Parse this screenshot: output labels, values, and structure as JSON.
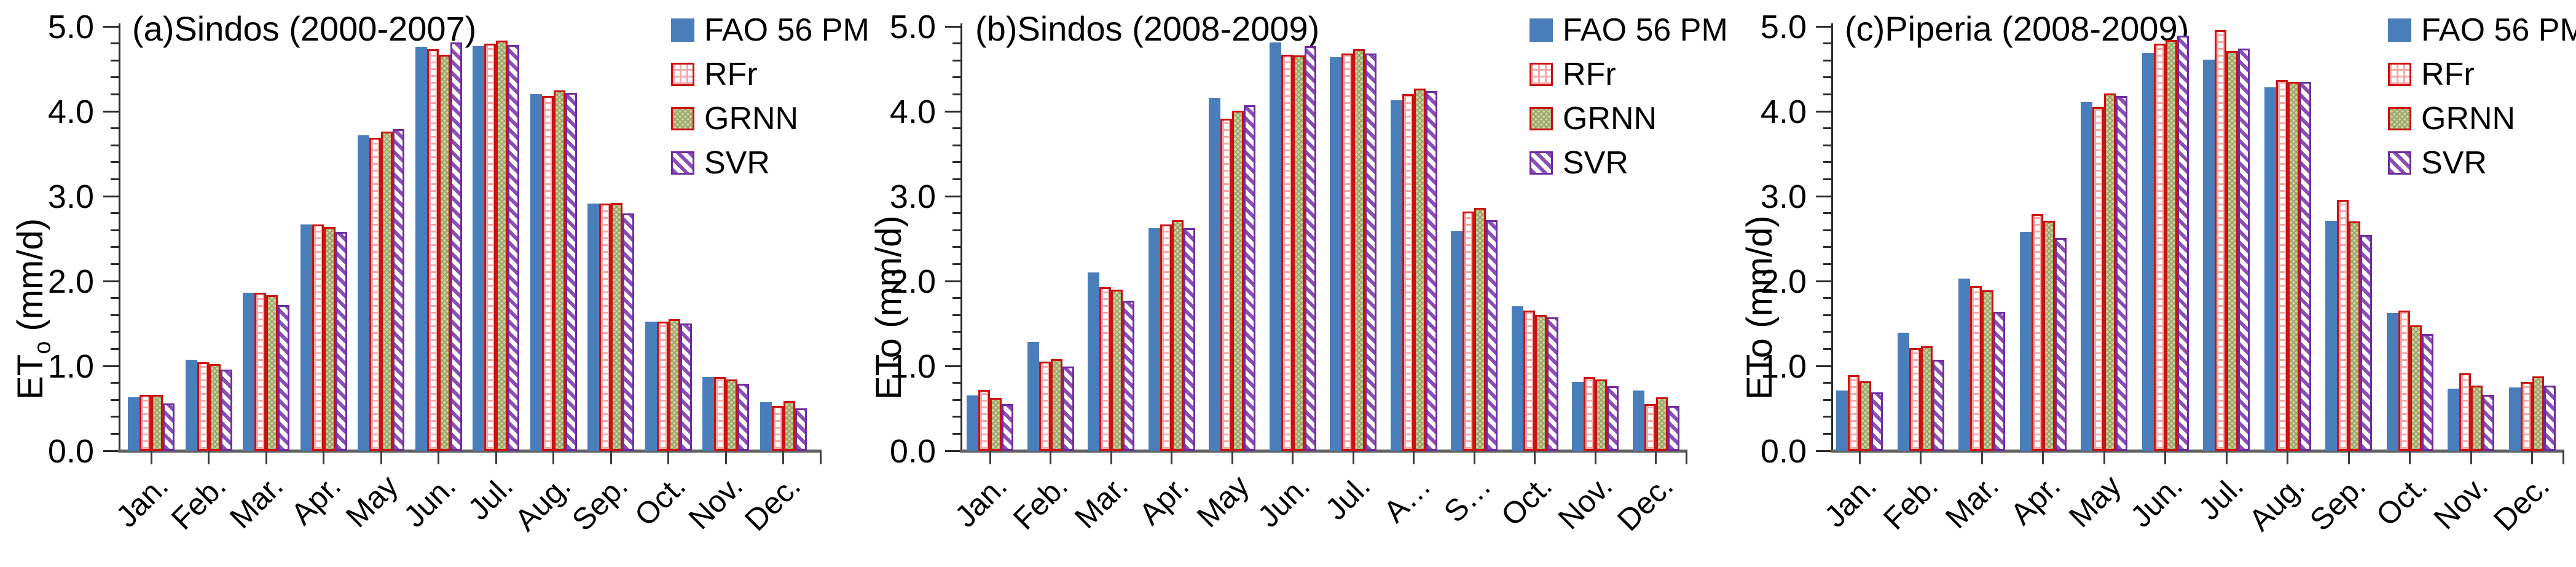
{
  "colors": {
    "fao": "#4a7ebb",
    "red": "#cc1111",
    "rfrgrid": "#f2a9a9",
    "grnnbg": "#ccd2a0",
    "grnndot": "#99a469",
    "svrstripe": "#8a4fb5",
    "svrborder": "#6f2da0",
    "axis": "#2b2b2b",
    "baseline_gray": "#5f5f5f"
  },
  "chart_data": [
    {
      "type": "bar",
      "title": "(a)Sindos (2000-2007)",
      "ylabel": {
        "prefix": "ET",
        "sub": "o",
        "suffix": " (mm/d)"
      },
      "ylim": [
        0.0,
        5.0
      ],
      "ytick_labels": [
        "0.0",
        "1.0",
        "2.0",
        "3.0",
        "4.0",
        "5.0"
      ],
      "minor_tick_step": 0.2,
      "grid": "off",
      "legend_position": "top-right",
      "categories": [
        "Jan.",
        "Feb.",
        "Mar.",
        "Apr.",
        "May",
        "Jun.",
        "Jul.",
        "Aug.",
        "Sep.",
        "Oct.",
        "Nov.",
        "Dec."
      ],
      "legend": [
        "FAO 56 PM",
        "RFr",
        "GRNN",
        "SVR"
      ],
      "series": [
        {
          "name": "FAO 56 PM",
          "values": [
            0.63,
            1.07,
            1.86,
            2.67,
            3.72,
            4.76,
            4.77,
            4.2,
            2.91,
            1.52,
            0.87,
            0.57
          ]
        },
        {
          "name": "RFr",
          "values": [
            0.66,
            1.04,
            1.86,
            2.67,
            3.69,
            4.73,
            4.8,
            4.18,
            2.91,
            1.52,
            0.87,
            0.53
          ]
        },
        {
          "name": "GRNN",
          "values": [
            0.66,
            1.02,
            1.83,
            2.64,
            3.76,
            4.67,
            4.83,
            4.25,
            2.92,
            1.55,
            0.84,
            0.59
          ]
        },
        {
          "name": "SVR",
          "values": [
            0.56,
            0.96,
            1.72,
            2.58,
            3.79,
            4.81,
            4.78,
            4.22,
            2.8,
            1.5,
            0.79,
            0.5
          ]
        }
      ]
    },
    {
      "type": "bar",
      "title": "(b)Sindos (2008-2009)",
      "ylabel": {
        "prefix": "ETo",
        "sub": "",
        "suffix": " (mm/d)"
      },
      "ylim": [
        0.0,
        5.0
      ],
      "ytick_labels": [
        "0.0",
        "1.0",
        "2.0",
        "3.0",
        "4.0",
        "5.0"
      ],
      "minor_tick_step": 0.2,
      "grid": "off",
      "legend_position": "top-right",
      "categories": [
        "Jan.",
        "Feb.",
        "Mar.",
        "Apr.",
        "May",
        "Jun.",
        "Jul.",
        "A…",
        "S…",
        "Oct.",
        "Nov.",
        "Dec."
      ],
      "legend": [
        "FAO 56 PM",
        "RFr",
        "GRNN",
        "SVR"
      ],
      "series": [
        {
          "name": "FAO 56 PM",
          "values": [
            0.65,
            1.28,
            2.1,
            2.62,
            4.16,
            4.81,
            4.64,
            4.13,
            2.59,
            1.7,
            0.81,
            0.71
          ]
        },
        {
          "name": "RFr",
          "values": [
            0.72,
            1.05,
            1.93,
            2.67,
            3.91,
            4.67,
            4.68,
            4.2,
            2.82,
            1.65,
            0.87,
            0.55
          ]
        },
        {
          "name": "GRNN",
          "values": [
            0.62,
            1.08,
            1.9,
            2.72,
            4.01,
            4.66,
            4.73,
            4.27,
            2.86,
            1.6,
            0.84,
            0.63
          ]
        },
        {
          "name": "SVR",
          "values": [
            0.55,
            0.99,
            1.77,
            2.62,
            4.07,
            4.77,
            4.68,
            4.24,
            2.72,
            1.57,
            0.76,
            0.53
          ]
        }
      ]
    },
    {
      "type": "bar",
      "title": "(c)Piperia (2008-2009)",
      "ylabel": {
        "prefix": "ETo",
        "sub": "",
        "suffix": " (mm/d)"
      },
      "ylim": [
        0.0,
        5.0
      ],
      "ytick_labels": [
        "0.0",
        "1.0",
        "2.0",
        "3.0",
        "4.0",
        "5.0"
      ],
      "minor_tick_step": 0.2,
      "grid": "off",
      "legend_position": "top-right",
      "categories": [
        "Jan.",
        "Feb.",
        "Mar.",
        "Apr.",
        "May",
        "Jun.",
        "Jul.",
        "Aug.",
        "Sep.",
        "Oct.",
        "Nov.",
        "Dec."
      ],
      "legend": [
        "FAO 56 PM",
        "RFr",
        "GRNN",
        "SVR"
      ],
      "series": [
        {
          "name": "FAO 56 PM",
          "values": [
            0.71,
            1.39,
            2.03,
            2.58,
            4.11,
            4.69,
            4.61,
            4.28,
            2.71,
            1.62,
            0.73,
            0.75
          ]
        },
        {
          "name": "RFr",
          "values": [
            0.89,
            1.21,
            1.94,
            2.79,
            4.05,
            4.8,
            4.96,
            4.37,
            2.96,
            1.65,
            0.91,
            0.81
          ]
        },
        {
          "name": "GRNN",
          "values": [
            0.82,
            1.23,
            1.89,
            2.71,
            4.21,
            4.84,
            4.71,
            4.35,
            2.7,
            1.48,
            0.77,
            0.88
          ]
        },
        {
          "name": "SVR",
          "values": [
            0.69,
            1.07,
            1.64,
            2.51,
            4.18,
            4.89,
            4.74,
            4.35,
            2.54,
            1.38,
            0.66,
            0.77
          ]
        }
      ]
    }
  ]
}
